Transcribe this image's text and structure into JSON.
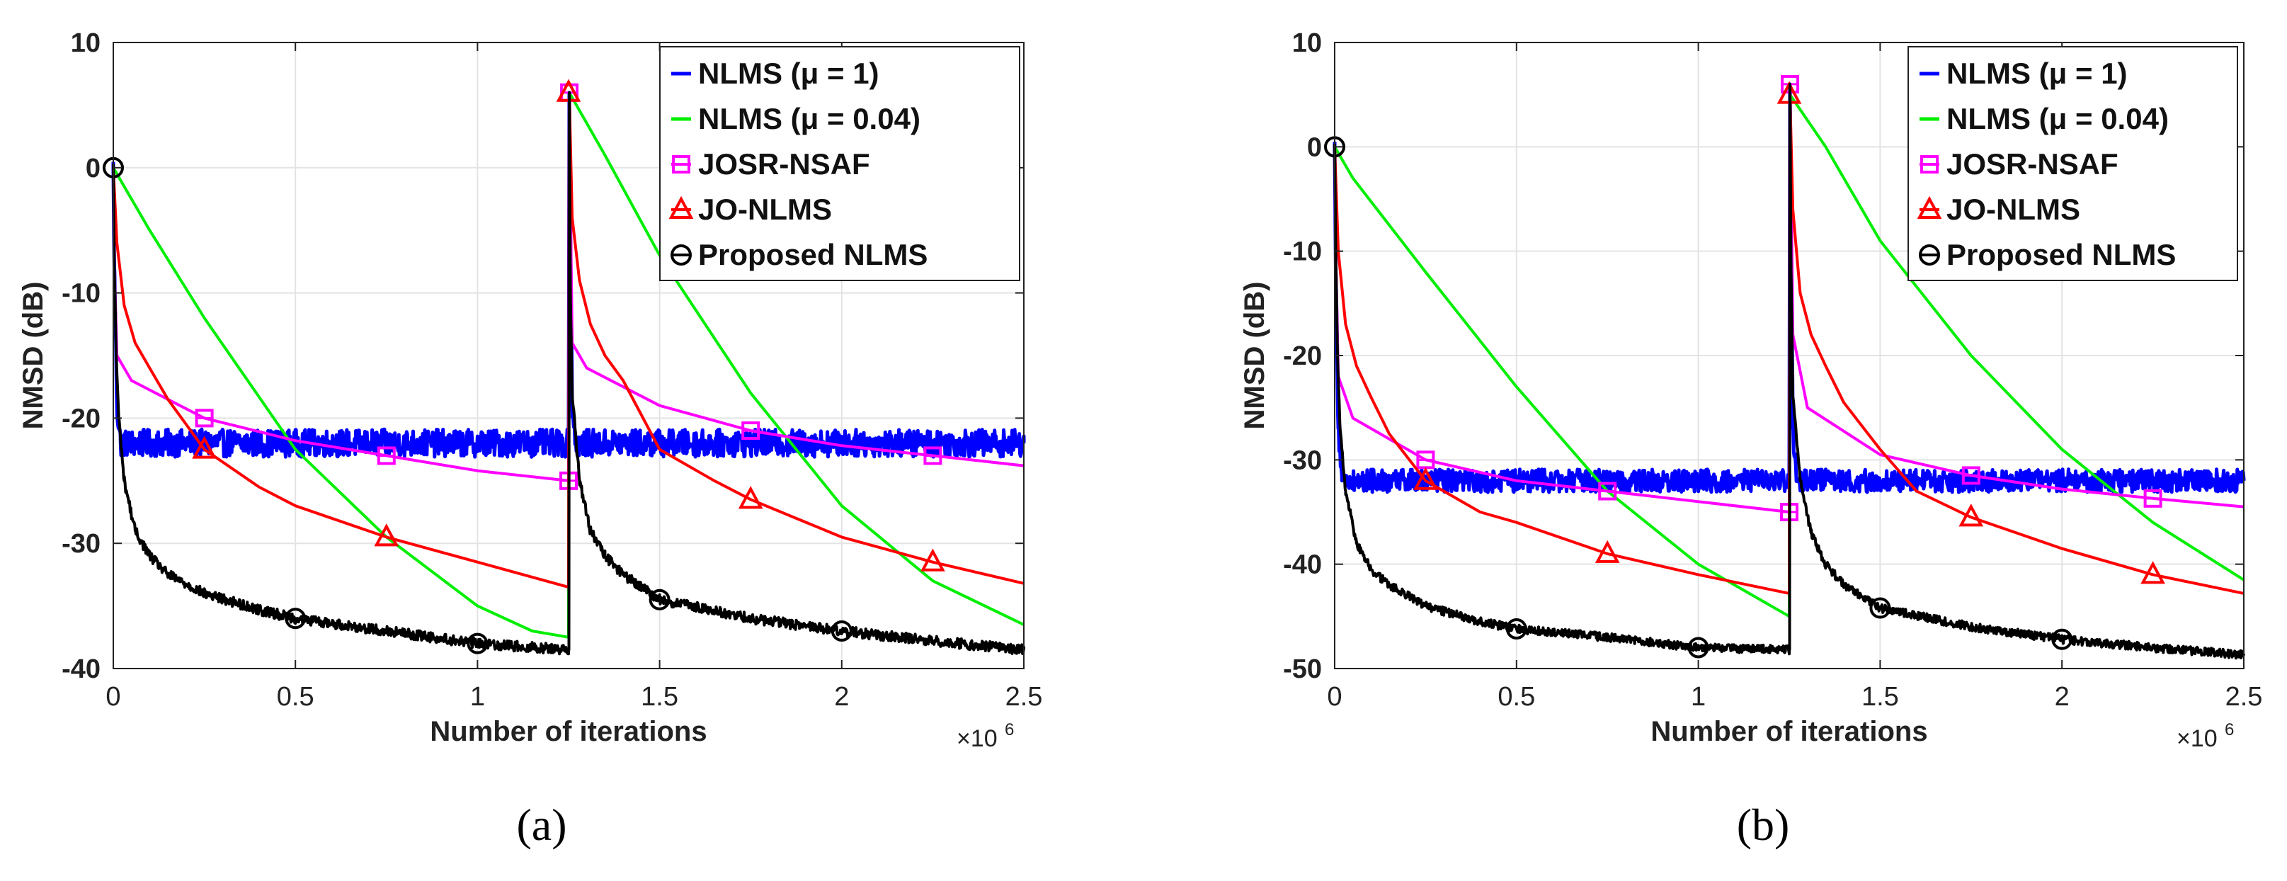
{
  "figure": {
    "panels": [
      {
        "caption": "(a)"
      },
      {
        "caption": "(b)"
      }
    ],
    "colors": {
      "blue": "#0000ff",
      "green": "#00ee00",
      "magenta": "#ff00ff",
      "red": "#ff0000",
      "black": "#000000"
    }
  },
  "chart_data": [
    {
      "type": "line",
      "panel": "a",
      "title": "",
      "xlabel": "Number of iterations",
      "ylabel": "NMSD (dB)",
      "x_multiplier": "×10",
      "x_multiplier_exp": "6",
      "xlim": [
        0,
        2.5
      ],
      "ylim": [
        -40,
        10
      ],
      "xticks": [
        0,
        0.5,
        1,
        1.5,
        2,
        2.5
      ],
      "xtick_labels": [
        "0",
        "0.5",
        "1",
        "1.5",
        "2",
        "2.5"
      ],
      "yticks": [
        -40,
        -30,
        -20,
        -10,
        0,
        10
      ],
      "ytick_labels": [
        "-40",
        "-30",
        "-20",
        "-10",
        "0",
        "10"
      ],
      "grid": true,
      "legend_position": "top-right",
      "legend": [
        "NLMS (μ = 1)",
        "NLMS (μ = 0.04)",
        "JOSR-NSAF",
        "JO-NLMS",
        "Proposed NLMS"
      ],
      "series": [
        {
          "name": "NLMS (μ = 1)",
          "color": "blue",
          "marker": "none",
          "noisy": true,
          "x": [
            0,
            0.003,
            0.01,
            0.02,
            1.25,
            1.252,
            1.256,
            1.26,
            1.27,
            2.5
          ],
          "y": [
            0,
            -8,
            -19,
            -22,
            -22,
            6,
            -8,
            -19,
            -22,
            -22
          ]
        },
        {
          "name": "NLMS (μ = 0.04)",
          "color": "green",
          "marker": "none",
          "x": [
            0,
            0.1,
            0.25,
            0.5,
            0.75,
            1.0,
            1.15,
            1.25,
            1.252,
            1.35,
            1.5,
            1.75,
            2.0,
            2.25,
            2.5
          ],
          "y": [
            0,
            -5,
            -12,
            -22.5,
            -29.5,
            -35,
            -37,
            -37.5,
            6,
            1,
            -7,
            -18,
            -27,
            -33,
            -36.5
          ]
        },
        {
          "name": "JOSR-NSAF",
          "color": "magenta",
          "marker": "square",
          "x": [
            0,
            0.003,
            0.01,
            0.05,
            0.25,
            0.5,
            0.75,
            1.0,
            1.25,
            1.252,
            1.256,
            1.26,
            1.3,
            1.5,
            1.75,
            2.0,
            2.25,
            2.5
          ],
          "y": [
            0,
            -8,
            -15,
            -17,
            -20,
            -21.8,
            -23,
            -24.2,
            -25,
            6,
            -5,
            -14,
            -16,
            -19,
            -21,
            -22.2,
            -23,
            -23.8
          ],
          "markers_x": [
            0.25,
            0.75,
            1.25,
            1.75,
            2.25
          ]
        },
        {
          "name": "JO-NLMS",
          "color": "red",
          "marker": "triangle",
          "x": [
            0,
            0.01,
            0.03,
            0.06,
            0.1,
            0.15,
            0.25,
            0.4,
            0.5,
            0.75,
            1.0,
            1.25,
            1.252,
            1.26,
            1.28,
            1.31,
            1.35,
            1.4,
            1.5,
            1.65,
            1.75,
            2.0,
            2.25,
            2.5
          ],
          "y": [
            0,
            -6,
            -11,
            -14,
            -16,
            -18.5,
            -22.5,
            -25.5,
            -27,
            -29.5,
            -31.5,
            -33.5,
            6,
            -4,
            -9,
            -12.5,
            -15,
            -17,
            -22.5,
            -25,
            -26.5,
            -29.5,
            -31.5,
            -33.2
          ],
          "markers_x": [
            1.25,
            0.25,
            0.75,
            1.75,
            2.25
          ]
        },
        {
          "name": "Proposed NLMS",
          "color": "black",
          "marker": "circle",
          "noisy": true,
          "x": [
            0,
            0.003,
            0.008,
            0.015,
            0.03,
            0.06,
            0.1,
            0.15,
            0.25,
            0.4,
            0.5,
            0.75,
            1.0,
            1.25,
            1.251,
            1.252,
            1.255,
            1.26,
            1.28,
            1.31,
            1.35,
            1.4,
            1.5,
            1.75,
            2.0,
            2.25,
            2.5
          ],
          "y": [
            0,
            -8,
            -15,
            -20,
            -25,
            -29,
            -31,
            -32.5,
            -34,
            -35.3,
            -36,
            -37,
            -38,
            -38.5,
            -38.5,
            6,
            -10,
            -18,
            -25,
            -29,
            -31,
            -32.5,
            -34.5,
            -36,
            -37,
            -37.8,
            -38.5
          ],
          "markers_x": [
            0,
            0.5,
            1.0,
            1.5,
            2.0
          ]
        }
      ]
    },
    {
      "type": "line",
      "panel": "b",
      "title": "",
      "xlabel": "Number of iterations",
      "ylabel": "NMSD (dB)",
      "x_multiplier": "×10",
      "x_multiplier_exp": "6",
      "xlim": [
        0,
        2.5
      ],
      "ylim": [
        -50,
        10
      ],
      "xticks": [
        0,
        0.5,
        1,
        1.5,
        2,
        2.5
      ],
      "xtick_labels": [
        "0",
        "0.5",
        "1",
        "1.5",
        "2",
        "2.5"
      ],
      "yticks": [
        -50,
        -40,
        -30,
        -20,
        -10,
        0,
        10
      ],
      "ytick_labels": [
        "-50",
        "-40",
        "-30",
        "-20",
        "-10",
        "0",
        "10"
      ],
      "grid": true,
      "legend_position": "top-right",
      "legend": [
        "NLMS (μ = 1)",
        "NLMS (μ = 0.04)",
        "JOSR-NSAF",
        "JO-NLMS",
        "Proposed NLMS"
      ],
      "series": [
        {
          "name": "NLMS (μ = 1)",
          "color": "blue",
          "marker": "none",
          "noisy": true,
          "x": [
            0,
            0.003,
            0.01,
            0.02,
            1.25,
            1.252,
            1.256,
            1.26,
            1.27,
            2.5
          ],
          "y": [
            0,
            -12,
            -27,
            -32,
            -32,
            6,
            -12,
            -27,
            -32,
            -32
          ]
        },
        {
          "name": "NLMS (μ = 0.04)",
          "color": "green",
          "marker": "none",
          "x": [
            0,
            0.05,
            0.25,
            0.5,
            0.75,
            1.0,
            1.25,
            1.252,
            1.35,
            1.5,
            1.75,
            2.0,
            2.25,
            2.5
          ],
          "y": [
            0,
            -3,
            -12,
            -23,
            -33,
            -40,
            -45,
            5,
            0,
            -9,
            -20,
            -29,
            -36,
            -41.5
          ]
        },
        {
          "name": "JOSR-NSAF",
          "color": "magenta",
          "marker": "square",
          "x": [
            0,
            0.003,
            0.01,
            0.05,
            0.25,
            0.5,
            0.75,
            1.0,
            1.25,
            1.252,
            1.256,
            1.26,
            1.3,
            1.5,
            1.75,
            2.0,
            2.25,
            2.5
          ],
          "y": [
            0,
            -10,
            -22,
            -26,
            -30,
            -32,
            -33,
            -34,
            -35,
            6,
            -6,
            -18,
            -25,
            -29.5,
            -31.5,
            -32.8,
            -33.7,
            -34.5
          ],
          "markers_x": [
            0.25,
            0.75,
            1.25,
            1.75,
            2.25
          ]
        },
        {
          "name": "JO-NLMS",
          "color": "red",
          "marker": "triangle",
          "x": [
            0,
            0.01,
            0.03,
            0.06,
            0.1,
            0.15,
            0.25,
            0.4,
            0.5,
            0.75,
            1.0,
            1.25,
            1.252,
            1.26,
            1.28,
            1.31,
            1.35,
            1.4,
            1.5,
            1.6,
            1.75,
            2.0,
            2.25,
            2.5
          ],
          "y": [
            0,
            -10,
            -17,
            -21,
            -24,
            -27.5,
            -32,
            -35,
            -36,
            -39,
            -41,
            -42.8,
            5,
            -6,
            -14,
            -18,
            -21,
            -24.5,
            -29,
            -33,
            -35.5,
            -38.5,
            -41,
            -42.8
          ],
          "markers_x": [
            1.25,
            0.25,
            0.75,
            1.75,
            2.25
          ]
        },
        {
          "name": "Proposed NLMS",
          "color": "black",
          "marker": "circle",
          "noisy": true,
          "x": [
            0,
            0.003,
            0.008,
            0.015,
            0.03,
            0.06,
            0.1,
            0.15,
            0.25,
            0.4,
            0.5,
            0.75,
            1.0,
            1.25,
            1.251,
            1.252,
            1.255,
            1.26,
            1.28,
            1.31,
            1.35,
            1.4,
            1.5,
            1.75,
            2.0,
            2.25,
            2.5
          ],
          "y": [
            0,
            -10,
            -20,
            -27,
            -33,
            -38,
            -40.5,
            -42,
            -44,
            -45.5,
            -46.2,
            -47,
            -48,
            -48.2,
            -48.2,
            6,
            -12,
            -24,
            -32,
            -37,
            -40,
            -42,
            -44.2,
            -46,
            -47.2,
            -48,
            -48.7
          ],
          "markers_x": [
            0,
            0.5,
            1.0,
            1.5,
            2.0
          ]
        }
      ]
    }
  ]
}
